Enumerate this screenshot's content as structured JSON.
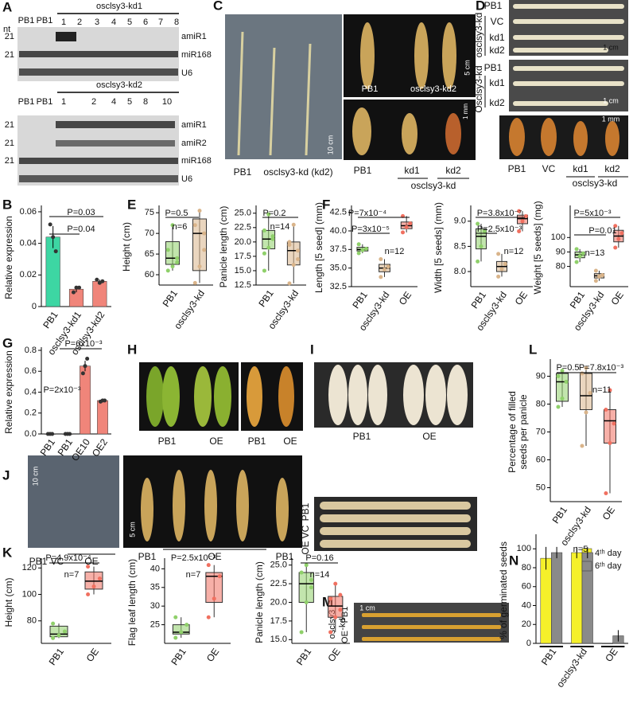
{
  "figure": {
    "letters": [
      "A",
      "B",
      "C",
      "D",
      "E",
      "F",
      "G",
      "H",
      "I",
      "J",
      "K",
      "L",
      "M",
      "N"
    ]
  },
  "photos": {
    "A": [
      "nt",
      "PB1",
      "PB1",
      "osclsy3-kd1",
      "1",
      "2",
      "3",
      "4",
      "5",
      "6",
      "7",
      "8",
      "21",
      "21",
      "amiR1",
      "miR168",
      "U6",
      "osclsy3-kd2",
      "PB1",
      "PB1",
      "1",
      "2",
      "4",
      "5",
      "8",
      "10",
      "21",
      "21",
      "21",
      "amiR1",
      "amiR2",
      "miR168",
      "U6"
    ],
    "C": [
      "PB1",
      "osclsy3-kd (kd2)",
      "10 cm",
      "PB1",
      "osclsy3-kd2",
      "5 cm",
      "1 mm",
      "PB1",
      "kd1",
      "kd2",
      "osclsy3-kd"
    ],
    "D": [
      "PB1",
      "VC",
      "kd1",
      "kd2",
      "osclsy3-kd",
      "1 cm",
      "PB1",
      "kd1",
      "kd2",
      "Osclsy3-kd",
      "1 cm",
      "1 mm",
      "PB1",
      "VC",
      "kd1",
      "kd2",
      "osclsy3-kd"
    ],
    "H": [
      "PB1",
      "OE",
      "PB1",
      "OE"
    ],
    "I": [
      "PB1",
      "OE"
    ],
    "J": [
      "10 cm",
      "PB1",
      "VC",
      "OE",
      "5 cm",
      "PB1",
      "OE",
      "PB1",
      "VC",
      "PB1",
      "OE"
    ],
    "M": [
      "1 cm",
      "PB1",
      "osclsy3",
      "-kd",
      "OE"
    ]
  },
  "chart_data": [
    {
      "type": "bar",
      "ylabel": [
        "Relative expression"
      ],
      "categories": [
        "PB1",
        "osclsy3-kd1",
        "osclsy3-kd2"
      ],
      "values": [
        0.044,
        0.011,
        0.016
      ],
      "errors": [
        0.007,
        0.002,
        0.001
      ],
      "points": [
        [
          0.052,
          0.044,
          0.035
        ],
        [
          0.009,
          0.012,
          0.012
        ],
        [
          0.017,
          0.015,
          0.016
        ]
      ],
      "colors": [
        "#3dd6a3",
        "#f0857a",
        "#f0857a"
      ],
      "ylim": [
        0,
        0.062
      ],
      "yticks": [
        0,
        0.02,
        0.04,
        0.06
      ],
      "annotations": [
        "P=0.03",
        "P=0.04"
      ]
    },
    {
      "type": "box",
      "ylabel": [
        "Height (cm)"
      ],
      "categories": [
        "PB1",
        "osclsy3-kd"
      ],
      "colors": [
        "#8fd06a",
        "#d9b48a"
      ],
      "boxes": [
        {
          "min": 61,
          "q1": 62.5,
          "median": 64,
          "q3": 68,
          "max": 72
        },
        {
          "min": 58,
          "q1": 61,
          "median": 70,
          "q3": 73.5,
          "max": 75.5
        }
      ],
      "points": [
        [
          61,
          62,
          64,
          66,
          72,
          63
        ],
        [
          58,
          62,
          70,
          72,
          75.5,
          66
        ]
      ],
      "ylim": [
        57.5,
        76
      ],
      "yticks": [
        60,
        65,
        70,
        75
      ],
      "annotations": [
        "P=0.5",
        "n=6"
      ]
    },
    {
      "type": "box",
      "ylabel": [
        "Panicle length (cm)"
      ],
      "categories": [
        "PB1",
        "osclsy3-kd"
      ],
      "colors": [
        "#8fd06a",
        "#d9b48a"
      ],
      "boxes": [
        {
          "min": 15,
          "q1": 18.8,
          "median": 20.5,
          "q3": 22,
          "max": 24.8
        },
        {
          "min": 12.8,
          "q1": 16,
          "median": 18.5,
          "q3": 20,
          "max": 23
        }
      ],
      "points": [
        [
          15,
          19,
          20.5,
          22,
          24.8,
          21,
          18
        ],
        [
          12.8,
          16,
          18.5,
          20,
          23,
          17,
          19.5
        ]
      ],
      "ylim": [
        12.5,
        25.8
      ],
      "yticks": [
        12.5,
        {
          "value": 15,
          "label": "15.0"
        },
        17.5,
        {
          "value": 20,
          "label": "20.0"
        },
        22.5,
        {
          "value": 25,
          "label": "25.0"
        }
      ],
      "annotations": [
        "P=0.2",
        "n=14"
      ]
    },
    {
      "type": "box",
      "ylabel": [
        "Length [5 seed] (mm)"
      ],
      "categories": [
        "PB1",
        "osclsy3-kd",
        "OE"
      ],
      "colors": [
        "#8fd06a",
        "#d9b48a",
        "#f07060"
      ],
      "boxes": [
        {
          "min": 37,
          "q1": 37.3,
          "median": 37.5,
          "q3": 37.8,
          "max": 38.2
        },
        {
          "min": 33.8,
          "q1": 34.5,
          "median": 35,
          "q3": 35.5,
          "max": 36.2
        },
        {
          "min": 39.8,
          "q1": 40.3,
          "median": 40.7,
          "q3": 41.2,
          "max": 42
        }
      ],
      "points": [
        [
          37,
          37.4,
          37.6,
          38.2
        ],
        [
          33.8,
          34.8,
          35.2,
          36.2
        ],
        [
          39.8,
          40.5,
          41,
          42
        ]
      ],
      "ylim": [
        32.5,
        43
      ],
      "yticks": [
        32.5,
        {
          "value": 35,
          "label": "35.0"
        },
        37.5,
        {
          "value": 40,
          "label": "40.0"
        },
        42.5
      ],
      "annotations": [
        "P=7x10⁻⁴",
        "P=3x10⁻⁵",
        "n=12"
      ]
    },
    {
      "type": "box",
      "ylabel": [
        "Width [5 seeds] (mm)"
      ],
      "categories": [
        "PB1",
        "osclsy3-kd",
        "OE"
      ],
      "colors": [
        "#8fd06a",
        "#d9b48a",
        "#f07060"
      ],
      "boxes": [
        {
          "min": 8.2,
          "q1": 8.45,
          "median": 8.7,
          "q3": 8.85,
          "max": 8.95
        },
        {
          "min": 7.9,
          "q1": 8,
          "median": 8.1,
          "q3": 8.2,
          "max": 8.35
        },
        {
          "min": 8.8,
          "q1": 8.95,
          "median": 9.05,
          "q3": 9.12,
          "max": 9.2
        }
      ],
      "points": [
        [
          8.2,
          8.5,
          8.8,
          8.95
        ],
        [
          7.9,
          8.05,
          8.15,
          8.35
        ],
        [
          8.8,
          9,
          9.1,
          9.2
        ]
      ],
      "ylim": [
        7.7,
        9.25
      ],
      "yticks": [
        {
          "value": 8,
          "label": "8.0"
        },
        8.5,
        {
          "value": 9,
          "label": "9.0"
        }
      ],
      "annotations": [
        "P=3.8x10⁻⁷",
        "P=2.5x10⁻³",
        "n=12"
      ]
    },
    {
      "type": "box",
      "ylabel": [
        "Weight [5 seeds] (mg)"
      ],
      "categories": [
        "PB1",
        "osclsy3-kd",
        "OE"
      ],
      "colors": [
        "#8fd06a",
        "#d9b48a",
        "#f07060"
      ],
      "boxes": [
        {
          "min": 83,
          "q1": 86,
          "median": 88,
          "q3": 90,
          "max": 92
        },
        {
          "min": 70,
          "q1": 72,
          "median": 73.5,
          "q3": 75,
          "max": 77
        },
        {
          "min": 93,
          "q1": 97,
          "median": 101,
          "q3": 105,
          "max": 108
        }
      ],
      "points": [
        [
          83,
          87,
          89,
          92
        ],
        [
          70,
          73,
          74,
          77
        ],
        [
          93,
          99,
          103,
          108
        ]
      ],
      "ylim": [
        66,
        120
      ],
      "yticks": [
        80,
        90,
        100
      ],
      "annotations": [
        "P=5x10⁻³",
        "P=0.01",
        "n=13"
      ]
    },
    {
      "type": "bar",
      "ylabel": [
        "Relative expression"
      ],
      "categories": [
        "PB1",
        "PB1",
        "OE10",
        "OE2"
      ],
      "values": [
        0,
        0,
        0.65,
        0.32
      ],
      "errors": [
        0,
        0,
        0.05,
        0.005
      ],
      "points": [
        [
          0,
          0,
          0
        ],
        [
          0,
          0,
          0
        ],
        [
          0.58,
          0.65,
          0.72
        ],
        [
          0.31,
          0.32,
          0.32
        ]
      ],
      "colors": [
        "#f0857a",
        "#f0857a",
        "#f0857a",
        "#f0857a"
      ],
      "ylim": [
        0,
        0.8
      ],
      "yticks": [
        {
          "value": 0,
          "label": "0.0"
        },
        0.2,
        0.4,
        0.6,
        0.8
      ],
      "annotations": [
        "P=6x10⁻³",
        "P=2x10⁻³"
      ]
    },
    {
      "type": "box",
      "ylabel": [
        "Percentage of filled",
        "seeds per panicle"
      ],
      "categories": [
        "PB1",
        "osclsy3-kd",
        "OE"
      ],
      "colors": [
        "#8fd06a",
        "#d9b48a",
        "#f07060"
      ],
      "boxes": [
        {
          "min": 79,
          "q1": 81,
          "median": 88,
          "q3": 91,
          "max": 92
        },
        {
          "min": 65,
          "q1": 78,
          "median": 83,
          "q3": 91,
          "max": 93
        },
        {
          "min": 48,
          "q1": 66,
          "median": 74,
          "q3": 78,
          "max": 85
        }
      ],
      "points": [
        [
          79,
          82,
          88,
          90,
          92
        ],
        [
          65,
          77,
          84,
          91,
          93
        ],
        [
          48,
          66,
          73,
          78,
          85
        ]
      ],
      "ylim": [
        45,
        95
      ],
      "yticks": [
        50,
        60,
        70,
        80,
        90
      ],
      "annotations": [
        "P=0.5",
        "P=7.8x10⁻³",
        "n=11"
      ]
    },
    {
      "type": "box",
      "ylabel": [
        "Height (cm)"
      ],
      "categories": [
        "PB1",
        "OE"
      ],
      "colors": [
        "#8fd06a",
        "#f07060"
      ],
      "boxes": [
        {
          "min": 67,
          "q1": 68,
          "median": 70,
          "q3": 76,
          "max": 78
        },
        {
          "min": 100,
          "q1": 104,
          "median": 110,
          "q3": 117,
          "max": 121
        }
      ],
      "points": [
        [
          67,
          69,
          72,
          78
        ],
        [
          100,
          106,
          112,
          121
        ]
      ],
      "ylim": [
        63,
        125
      ],
      "yticks": [
        80,
        100,
        120
      ],
      "annotations": [
        "P=4.9x10⁻⁴",
        "n=7"
      ]
    },
    {
      "type": "box",
      "ylabel": [
        "Flag leaf length (cm)"
      ],
      "categories": [
        "PB1",
        "OE"
      ],
      "colors": [
        "#8fd06a",
        "#f07060"
      ],
      "boxes": [
        {
          "min": 21.5,
          "q1": 22.5,
          "median": 23,
          "q3": 25,
          "max": 27
        },
        {
          "min": 27,
          "q1": 31,
          "median": 38,
          "q3": 39,
          "max": 41
        }
      ],
      "points": [
        [
          21.5,
          23,
          25,
          27
        ],
        [
          27,
          32,
          38,
          41
        ]
      ],
      "ylim": [
        20,
        42
      ],
      "yticks": [
        25,
        30,
        35,
        40
      ],
      "annotations": [
        "P=2.5x10⁻³",
        "n=7"
      ]
    },
    {
      "type": "box",
      "ylabel": [
        "Panicle length (cm)"
      ],
      "categories": [
        "PB1",
        "OE"
      ],
      "colors": [
        "#8fd06a",
        "#f07060"
      ],
      "boxes": [
        {
          "min": 16,
          "q1": 20,
          "median": 22.5,
          "q3": 24,
          "max": 25
        },
        {
          "min": 16,
          "q1": 18,
          "median": 19.5,
          "q3": 20.8,
          "max": 22.5
        }
      ],
      "points": [
        [
          16,
          20,
          22,
          24,
          25,
          23
        ],
        [
          16,
          18,
          19,
          20.5,
          22.5,
          21
        ]
      ],
      "ylim": [
        14.5,
        25.5
      ],
      "yticks": [
        {
          "value": 15,
          "label": "15.0"
        },
        17.5,
        {
          "value": 20,
          "label": "20.0"
        },
        22.5,
        {
          "value": 25,
          "label": "25.0"
        }
      ],
      "annotations": [
        "P=0.16",
        "n=14"
      ]
    },
    {
      "type": "grouped",
      "ylabel": [
        "% of germinated seeds"
      ],
      "categories": [
        "PB1",
        "osclsy3-kd",
        "OE"
      ],
      "series": [
        {
          "name": "4ᵗʰ day",
          "color": "#f5f02a",
          "values": [
            90,
            96,
            0
          ],
          "errors": [
            12,
            6,
            0
          ]
        },
        {
          "name": "6ᵗʰ day",
          "color": "#8a8a8a",
          "values": [
            96,
            96,
            8
          ],
          "errors": [
            6,
            6,
            6
          ]
        }
      ],
      "ylim": [
        0,
        112
      ],
      "yticks": [
        0,
        20,
        40,
        60,
        80,
        100
      ],
      "annotations": [
        "n=5"
      ]
    }
  ]
}
